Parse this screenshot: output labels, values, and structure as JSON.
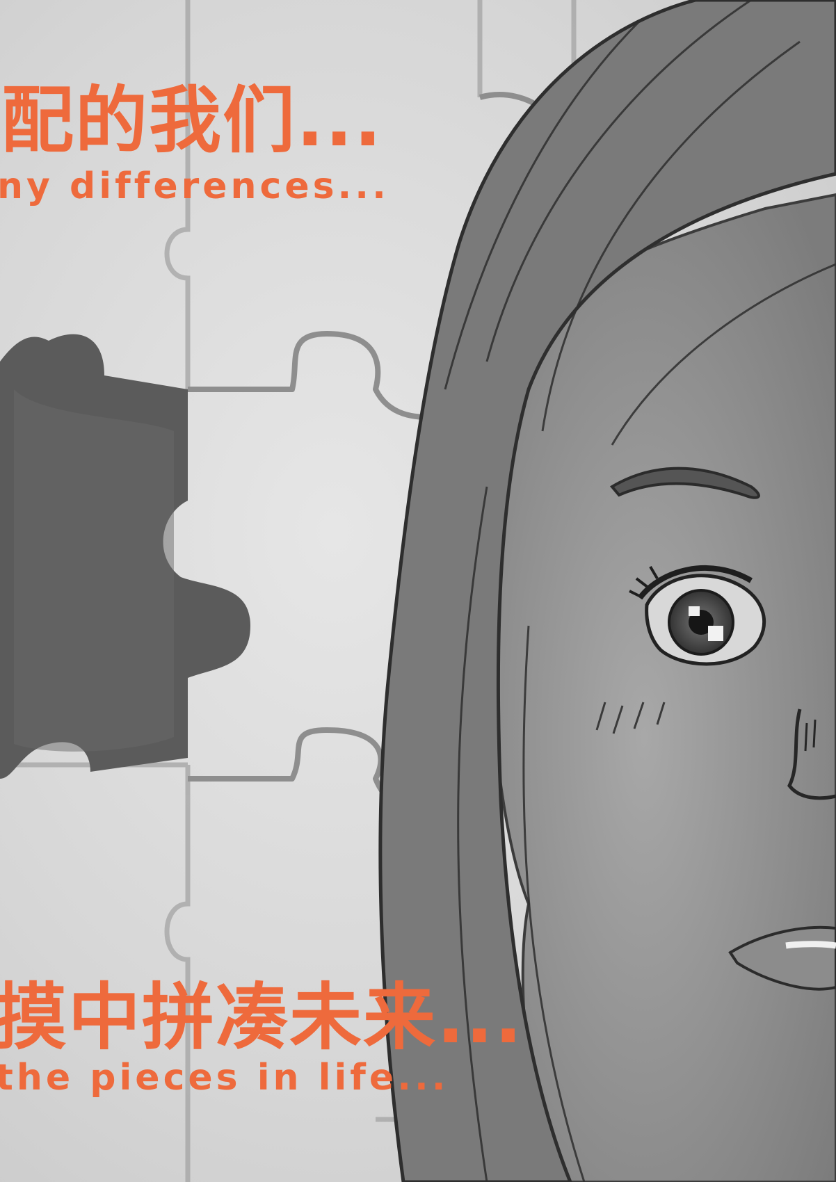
{
  "poster": {
    "top_caption": {
      "chinese": "配的我们...",
      "english": "ny differences..."
    },
    "bottom_caption": {
      "chinese": "摸中拼凑未来...",
      "english": "the pieces in life..."
    }
  },
  "colors": {
    "caption_text": "#ee6a3c",
    "background": "#dcdcdc",
    "missing_piece_shadow": "#5a5a5a",
    "puzzle_lines": "#9a9a9a",
    "sketch_lines": "#3a3a3a"
  },
  "icons": {
    "puzzle_piece": "missing-puzzle-piece-illustration",
    "portrait": "girl-face-sketch-illustration"
  }
}
